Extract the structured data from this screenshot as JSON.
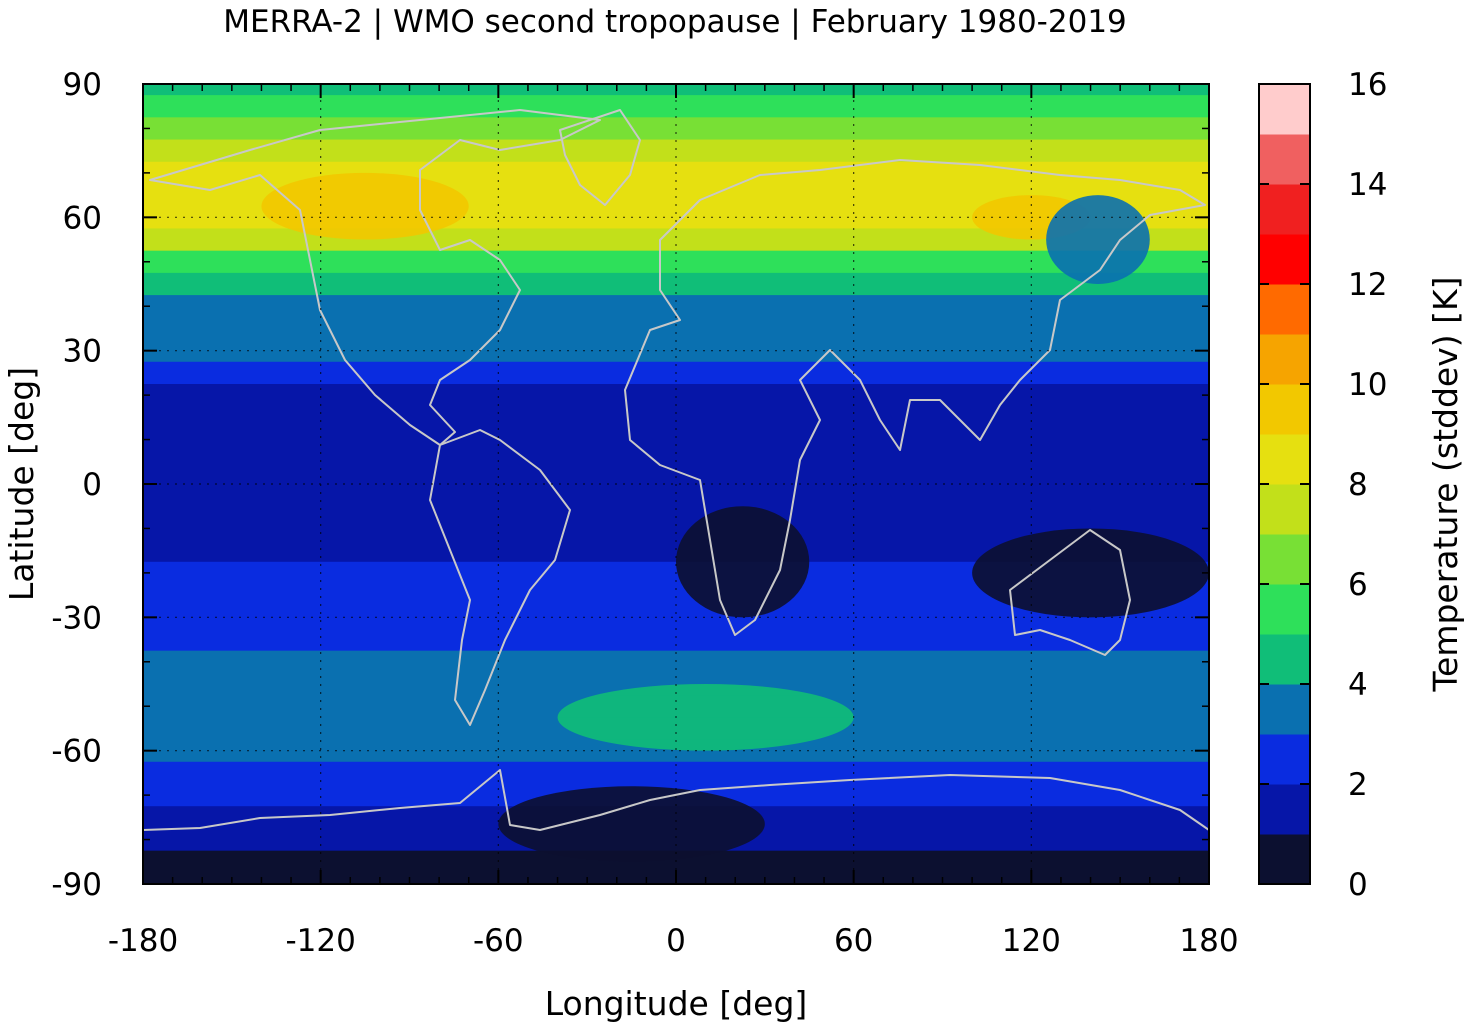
{
  "title": "MERRA-2 | WMO second tropopause | February 1980-2019",
  "chart_data": {
    "type": "heatmap",
    "title": "MERRA-2 | WMO second tropopause | February 1980-2019",
    "xlabel": "Longitude [deg]",
    "ylabel": "Latitude [deg]",
    "xlim": [
      -180,
      180
    ],
    "ylim": [
      -90,
      90
    ],
    "x_ticks": [
      "-180",
      "-120",
      "-60",
      "0",
      "60",
      "120",
      "180"
    ],
    "y_ticks": [
      "90",
      "60",
      "30",
      "0",
      "-30",
      "-60",
      "-90"
    ],
    "grid": true,
    "colorbar": {
      "label": "Temperature (stddev) [K]",
      "ticks": [
        "0",
        "2",
        "4",
        "6",
        "8",
        "10",
        "12",
        "14",
        "16"
      ],
      "range": [
        0,
        16
      ],
      "levels": [
        {
          "from": 0,
          "to": 1,
          "color": "#0c1030"
        },
        {
          "from": 1,
          "to": 2,
          "color": "#0616a8"
        },
        {
          "from": 2,
          "to": 3,
          "color": "#0a2ce0"
        },
        {
          "from": 3,
          "to": 4,
          "color": "#0a70b0"
        },
        {
          "from": 4,
          "to": 5,
          "color": "#10be78"
        },
        {
          "from": 5,
          "to": 6,
          "color": "#2ee05a"
        },
        {
          "from": 6,
          "to": 7,
          "color": "#78e035"
        },
        {
          "from": 7,
          "to": 8,
          "color": "#c2e01a"
        },
        {
          "from": 8,
          "to": 9,
          "color": "#e6e010"
        },
        {
          "from": 9,
          "to": 10,
          "color": "#f2c800"
        },
        {
          "from": 10,
          "to": 11,
          "color": "#f6a400"
        },
        {
          "from": 11,
          "to": 12,
          "color": "#ff6a00"
        },
        {
          "from": 12,
          "to": 13,
          "color": "#ff0000"
        },
        {
          "from": 13,
          "to": 14,
          "color": "#f02020"
        },
        {
          "from": 14,
          "to": 15,
          "color": "#f06060"
        },
        {
          "from": 15,
          "to": 16,
          "color": "#ffcccc"
        }
      ]
    },
    "approx_zonal_profile": [
      {
        "lat": 90,
        "value": 4.5
      },
      {
        "lat": 85,
        "value": 5.2
      },
      {
        "lat": 80,
        "value": 6.5
      },
      {
        "lat": 75,
        "value": 7.8
      },
      {
        "lat": 70,
        "value": 8.3
      },
      {
        "lat": 65,
        "value": 8.4
      },
      {
        "lat": 60,
        "value": 8.0
      },
      {
        "lat": 55,
        "value": 7.0
      },
      {
        "lat": 50,
        "value": 5.8
      },
      {
        "lat": 45,
        "value": 4.6
      },
      {
        "lat": 40,
        "value": 3.9
      },
      {
        "lat": 35,
        "value": 3.6
      },
      {
        "lat": 30,
        "value": 3.2
      },
      {
        "lat": 25,
        "value": 2.5
      },
      {
        "lat": 20,
        "value": 1.9
      },
      {
        "lat": 15,
        "value": 1.3
      },
      {
        "lat": 10,
        "value": 1.1
      },
      {
        "lat": 5,
        "value": 1.5
      },
      {
        "lat": 0,
        "value": 1.7
      },
      {
        "lat": -5,
        "value": 1.6
      },
      {
        "lat": -10,
        "value": 1.4
      },
      {
        "lat": -15,
        "value": 1.6
      },
      {
        "lat": -20,
        "value": 2.2
      },
      {
        "lat": -25,
        "value": 2.5
      },
      {
        "lat": -30,
        "value": 2.6
      },
      {
        "lat": -35,
        "value": 2.9
      },
      {
        "lat": -40,
        "value": 3.3
      },
      {
        "lat": -45,
        "value": 3.6
      },
      {
        "lat": -50,
        "value": 3.9
      },
      {
        "lat": -55,
        "value": 3.6
      },
      {
        "lat": -60,
        "value": 3.0
      },
      {
        "lat": -65,
        "value": 2.4
      },
      {
        "lat": -70,
        "value": 2.0
      },
      {
        "lat": -75,
        "value": 1.6
      },
      {
        "lat": -80,
        "value": 1.2
      },
      {
        "lat": -85,
        "value": 0.9
      },
      {
        "lat": -90,
        "value": 0.8
      }
    ],
    "approx_features": [
      {
        "name": "max-band",
        "lon": [
          -140,
          -70
        ],
        "lat": [
          55,
          70
        ],
        "value": 9.5
      },
      {
        "name": "siberia-max",
        "lon": [
          100,
          140
        ],
        "lat": [
          55,
          65
        ],
        "value": 9.0
      },
      {
        "name": "low-patch",
        "lon": [
          125,
          160
        ],
        "lat": [
          45,
          65
        ],
        "value": 3.5
      },
      {
        "name": "africa-min",
        "lon": [
          0,
          45
        ],
        "lat": [
          -30,
          -5
        ],
        "value": 0.6
      },
      {
        "name": "indo-min",
        "lon": [
          100,
          180
        ],
        "lat": [
          -30,
          -10
        ],
        "value": 0.7
      },
      {
        "name": "southern-band",
        "lon": [
          -40,
          60
        ],
        "lat": [
          -60,
          -45
        ],
        "value": 4.4
      },
      {
        "name": "antarctic-min",
        "lon": [
          -60,
          30
        ],
        "lat": [
          -85,
          -68
        ],
        "value": 0.5
      }
    ]
  }
}
